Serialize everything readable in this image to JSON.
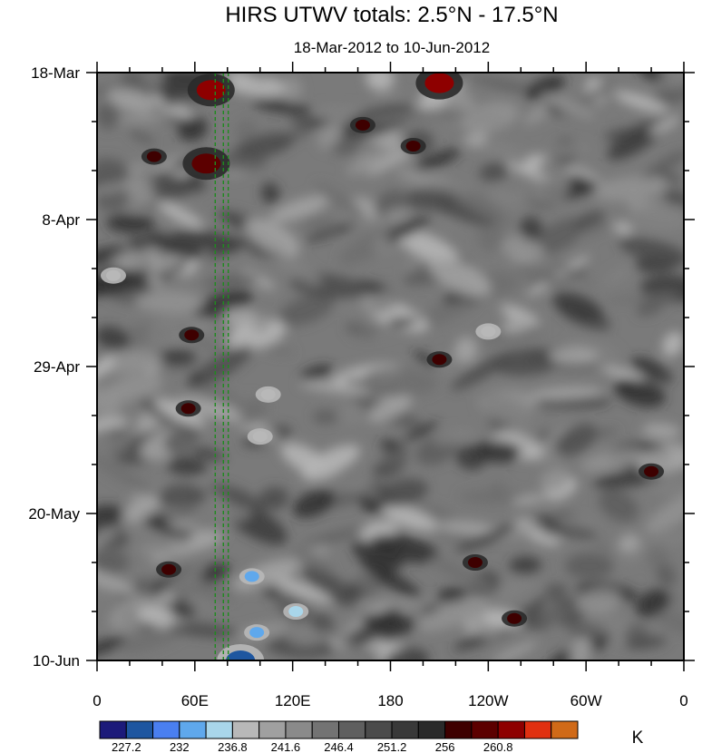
{
  "chart_data": {
    "type": "heatmap",
    "title": "HIRS UTWV totals: 2.5°N - 17.5°N",
    "subtitle": "18-Mar-2012 to 10-Jun-2012",
    "x_ticks": [
      "0",
      "60E",
      "120E",
      "180",
      "120W",
      "60W",
      "0"
    ],
    "x_tick_lons": [
      0,
      60,
      120,
      180,
      240,
      300,
      360
    ],
    "xlim": [
      0,
      360
    ],
    "y_ticks": [
      "18-Mar",
      "8-Apr",
      "29-Apr",
      "20-May",
      "10-Jun"
    ],
    "y_tick_days": [
      0,
      21,
      42,
      63,
      84
    ],
    "ylim": [
      0,
      84
    ],
    "y_direction": "time increases downward",
    "units": "K",
    "colorbar": {
      "colors": [
        "#1c1a7a",
        "#1e56a0",
        "#4a7ff0",
        "#5fa8ec",
        "#a9d6ea",
        "#b8b8b8",
        "#a0a0a0",
        "#8a8a8a",
        "#737373",
        "#5f5f5f",
        "#4b4b4b",
        "#393939",
        "#2a2a2a",
        "#3e0000",
        "#5c0000",
        "#8e0000",
        "#e03010",
        "#d06a18"
      ],
      "labels": [
        "227.2",
        "232",
        "236.8",
        "241.6",
        "246.4",
        "251.2",
        "256",
        "260.8"
      ],
      "label_positions": [
        1,
        3,
        5,
        7,
        9,
        11,
        13,
        15
      ]
    },
    "reference_lines": {
      "style": "green dashed",
      "lons": [
        72.5,
        77.5,
        80.5
      ]
    },
    "features": [
      {
        "kind": "warm",
        "lon": 70,
        "day": 2.5,
        "value": 262
      },
      {
        "kind": "warm",
        "lon": 210,
        "day": 1.5,
        "value": 261
      },
      {
        "kind": "warm",
        "lon": 67,
        "day": 13,
        "value": 259
      },
      {
        "kind": "warm",
        "lon": 35,
        "day": 12,
        "value": 258
      },
      {
        "kind": "warm",
        "lon": 58,
        "day": 37.5,
        "value": 258
      },
      {
        "kind": "warm",
        "lon": 194,
        "day": 10.5,
        "value": 257
      },
      {
        "kind": "warm",
        "lon": 163,
        "day": 7.5,
        "value": 257
      },
      {
        "kind": "warm",
        "lon": 210,
        "day": 41,
        "value": 257
      },
      {
        "kind": "warm",
        "lon": 340,
        "day": 57,
        "value": 258
      },
      {
        "kind": "warm",
        "lon": 232,
        "day": 70,
        "value": 258
      },
      {
        "kind": "warm",
        "lon": 256,
        "day": 78,
        "value": 257
      },
      {
        "kind": "warm",
        "lon": 44,
        "day": 71,
        "value": 257
      },
      {
        "kind": "warm",
        "lon": 56,
        "day": 48,
        "value": 257
      },
      {
        "kind": "dry",
        "lon": 88,
        "day": 84,
        "value": 228
      },
      {
        "kind": "dry",
        "lon": 95,
        "day": 72,
        "value": 232
      },
      {
        "kind": "dry",
        "lon": 98,
        "day": 80,
        "value": 233
      },
      {
        "kind": "dry",
        "lon": 122,
        "day": 77,
        "value": 235
      },
      {
        "kind": "dry",
        "lon": 100,
        "day": 52,
        "value": 238
      },
      {
        "kind": "dry",
        "lon": 105,
        "day": 46,
        "value": 238
      },
      {
        "kind": "dry",
        "lon": 10,
        "day": 29,
        "value": 238
      },
      {
        "kind": "dry",
        "lon": 240,
        "day": 37,
        "value": 239
      }
    ]
  }
}
